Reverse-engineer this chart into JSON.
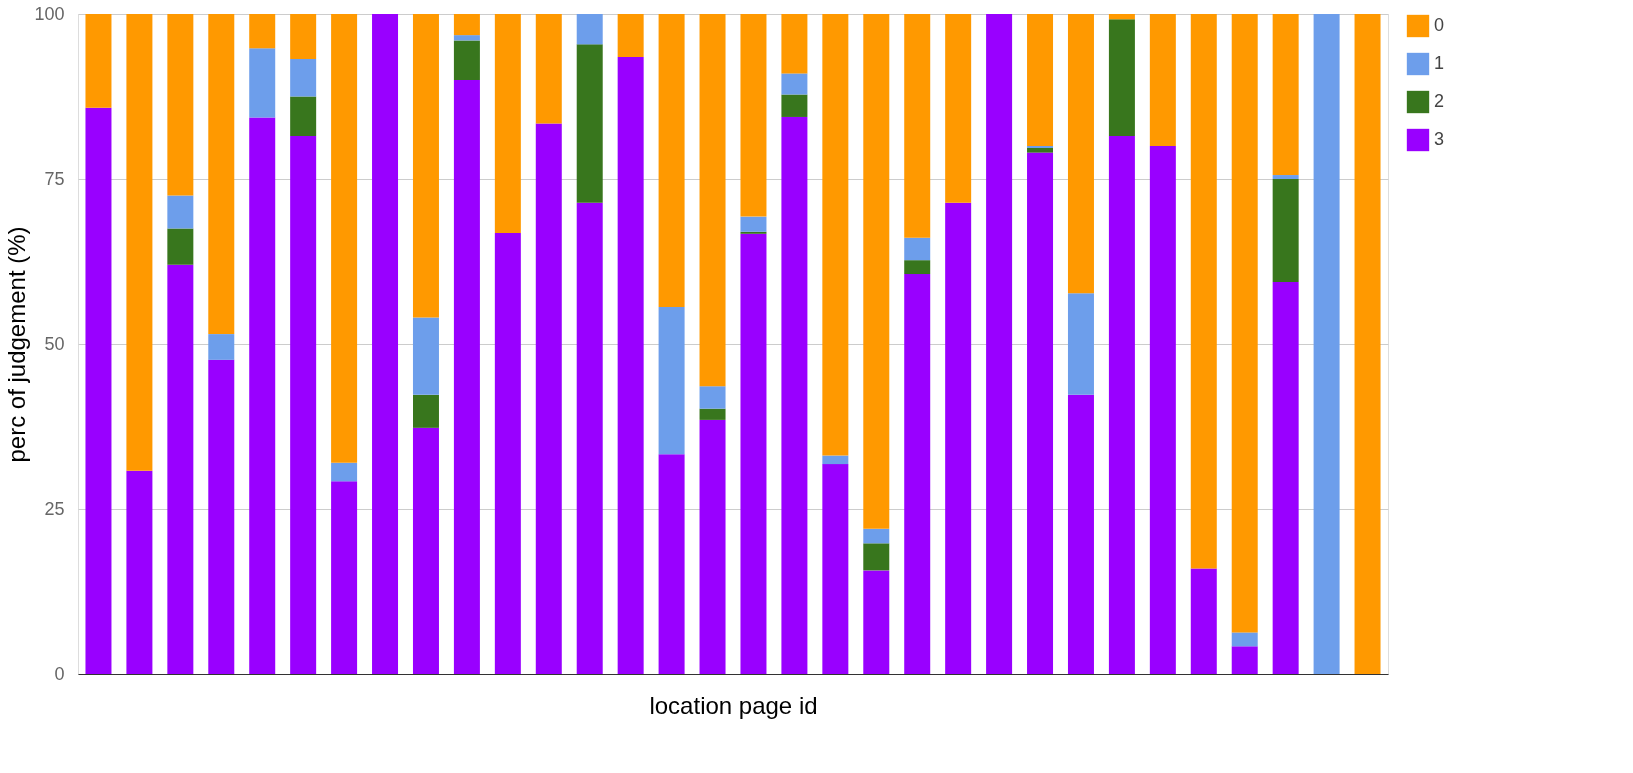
{
  "chart_data": {
    "type": "bar",
    "stacked": true,
    "xlabel": "location page id",
    "ylabel": "perc of judgement (%)",
    "categories": [
      null,
      null,
      null,
      null,
      null,
      null,
      null,
      null,
      null,
      null,
      null,
      null,
      null,
      null,
      null,
      null,
      null,
      null,
      null,
      null,
      null,
      null,
      null,
      null,
      null,
      null,
      null,
      null,
      null,
      null,
      null,
      null
    ],
    "series": [
      {
        "name": "3",
        "color": "#9900ff",
        "values": [
          85.8,
          30.8,
          62,
          47.6,
          84.3,
          81.5,
          29.2,
          100,
          37.3,
          90,
          66.8,
          83.4,
          71.4,
          93.5,
          33.3,
          38.5,
          66.7,
          84.4,
          31.8,
          15.7,
          60.6,
          71.4,
          100,
          79,
          42.3,
          81.5,
          80,
          16,
          4.2,
          59.4,
          0,
          0
        ]
      },
      {
        "name": "2",
        "color": "#38761d",
        "values": [
          0,
          0,
          5.5,
          0,
          0,
          6,
          0,
          0,
          5,
          6,
          0,
          0,
          24,
          0,
          0,
          1.7,
          0.3,
          3.4,
          0,
          4.1,
          2.1,
          0,
          0,
          0.7,
          0,
          17.7,
          0,
          0,
          0,
          15.6,
          0,
          0
        ]
      },
      {
        "name": "1",
        "color": "#6d9eeb",
        "values": [
          0,
          0,
          5,
          3.9,
          10.5,
          5.7,
          2.8,
          0,
          11.7,
          0.8,
          0,
          0,
          4.6,
          0,
          22.3,
          3.4,
          2.3,
          3.2,
          1.3,
          2.2,
          3.4,
          0,
          0,
          0.3,
          15.4,
          0,
          0,
          0,
          2.1,
          0.6,
          100,
          0
        ]
      },
      {
        "name": "0",
        "color": "#ff9900",
        "values": [
          14.2,
          69.2,
          27.5,
          48.5,
          5.2,
          6.8,
          68,
          0,
          46,
          3.2,
          33.2,
          16.6,
          0,
          6.5,
          44.4,
          56.4,
          30.7,
          9,
          66.9,
          78,
          33.9,
          28.6,
          0,
          20,
          42.3,
          0.8,
          20,
          84,
          93.7,
          24.4,
          0,
          100
        ]
      }
    ],
    "ylim": [
      0,
      100
    ],
    "yticks": [
      0,
      25,
      50,
      75,
      100
    ],
    "grid": "y",
    "legend": "top right",
    "tick_labels": "y"
  }
}
